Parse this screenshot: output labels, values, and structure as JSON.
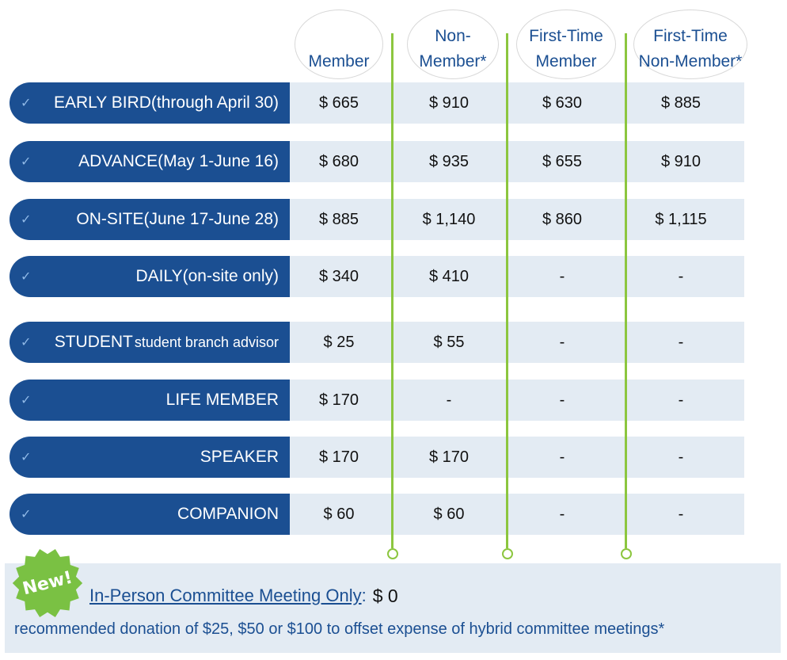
{
  "columns": [
    {
      "label": "Member"
    },
    {
      "label": "Non-\nMember*"
    },
    {
      "label": "First-Time\nMember"
    },
    {
      "label": "First-Time\nNon-Member*"
    }
  ],
  "rows": [
    {
      "label": "EARLY BIRD",
      "sub": " (through April 30)",
      "values": [
        "$ 665",
        "$ 910",
        "$ 630",
        "$ 885"
      ]
    },
    {
      "label": "ADVANCE",
      "sub": " (May 1-June 16)",
      "values": [
        "$ 680",
        "$ 935",
        "$ 655",
        "$ 910"
      ]
    },
    {
      "label": "ON-SITE",
      "sub": " (June 17-June 28)",
      "values": [
        "$ 885",
        "$ 1,140",
        "$ 860",
        "$ 1,115"
      ]
    },
    {
      "label": "DAILY",
      "sub": " (on-site only)",
      "values": [
        "$ 340",
        "$ 410",
        "-",
        "-"
      ]
    },
    {
      "label": "STUDENT",
      "sub": "student branch advisor",
      "values": [
        "$ 25",
        "$ 55",
        "-",
        "-"
      ]
    },
    {
      "label": "LIFE MEMBER",
      "sub": "",
      "values": [
        "$ 170",
        "-",
        "-",
        "-"
      ]
    },
    {
      "label": "SPEAKER",
      "sub": "",
      "values": [
        "$ 170",
        "$ 170",
        "-",
        "-"
      ]
    },
    {
      "label": "COMPANION",
      "sub": "",
      "values": [
        "$ 60",
        "$ 60",
        "-",
        "-"
      ]
    }
  ],
  "check_glyph": "✓",
  "footer": {
    "badge": "New!",
    "meeting_link": "In-Person Committee Meeting Only",
    "colon": ":",
    "meeting_price": "$ 0",
    "donation": "recommended donation of $25, $50 or $100 to offset expense of hybrid committee meetings*"
  },
  "colors": {
    "brand_blue": "#1b4f92",
    "row_bg": "#e3ebf3",
    "divider_green": "#8cc63f",
    "badge_green": "#7ac143"
  }
}
